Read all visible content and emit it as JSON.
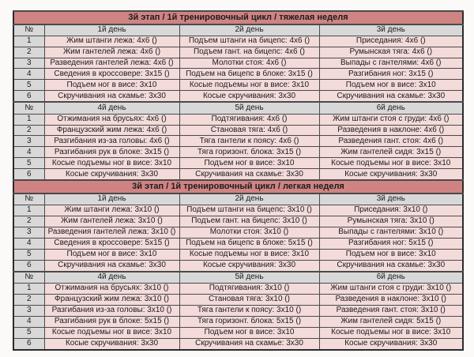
{
  "colors": {
    "title_bg": "#D08383",
    "header_bg": "#D8D8D8",
    "cell_bg": "#F3DBDA",
    "border": "#4a4a4a",
    "border_outer": "#2b2b2b",
    "text": "#1c1c1c",
    "page_bg": "#FBFAF9"
  },
  "table": {
    "sections": [
      {
        "title": "3й этап / 1й тренировочный цикл / тяжелая неделя",
        "blocks": [
          {
            "headers": [
              "№",
              "1й день",
              "2й день",
              "3й день"
            ],
            "rows": [
              [
                "1",
                "Жим штанги лежа: 4х6 ()",
                "Подъем штанги на бицепс: 4х6 ()",
                "Приседания: 4х6 ()"
              ],
              [
                "2",
                "Жим гантелей лежа: 4х6 ()",
                "Подъем гант. на бицепс: 4х6 ()",
                "Румынская тяга: 4х6 ()"
              ],
              [
                "3",
                "Разведения гантелей лежа: 4х6 ()",
                "Молотки стоя: 4х6 ()",
                "Выпады с гантелями: 4х6 ()"
              ],
              [
                "4",
                "Сведения в кроссовере: 3х15 ()",
                "Подъем на бицепс в блоке: 3х15 ()",
                "Разгибания ног: 3х15 ()"
              ],
              [
                "5",
                "Подъем ног в висе: 3х10",
                "Косые подъемы ног в висе: 3х10",
                "Подъем ног в висе: 3х10"
              ],
              [
                "6",
                "Скручивания на скамье: 3х30",
                "Косые скручивания: 3х30",
                "Скручивания на скамье: 3х30"
              ]
            ]
          },
          {
            "headers": [
              "№",
              "4й день",
              "5й день",
              "6й день"
            ],
            "rows": [
              [
                "1",
                "Отжимания на брусьях: 4х6 ()",
                "Подтягивания: 4х6 ()",
                "Жим штанги стоя с груди: 4х6 ()"
              ],
              [
                "2",
                "Французский жим лежа: 4х6 ()",
                "Становая тяга: 4х6 ()",
                "Разведения в наклоне: 4х6 ()"
              ],
              [
                "3",
                "Разгибания из-за головы: 4х6 ()",
                "Тяга гантели к поясу: 4х6 ()",
                "Разведения гант. стоя: 4х6 ()"
              ],
              [
                "4",
                "Разгибания рук в блоке: 3х15 ()",
                "Тяга горизонт. блока: 3х15 ()",
                "Жим гантелей сидя: 3х15 ()"
              ],
              [
                "5",
                "Косые подъемы ног в висе: 3х10",
                "Подъем ног в висе: 3х10",
                "Косые подъемы ног в висе: 3х10"
              ],
              [
                "6",
                "Косые скручивания: 3х30",
                "Скручивания на скамье: 3х30",
                "Косые скручивания: 3х30"
              ]
            ]
          }
        ]
      },
      {
        "title": "3й этап / 1й тренировочный цикл / легкая неделя",
        "blocks": [
          {
            "headers": [
              "№",
              "1й день",
              "2й день",
              "3й день"
            ],
            "rows": [
              [
                "1",
                "Жим штанги лежа: 3х10 ()",
                "Подъем штанги на бицепс: 3х10 ()",
                "Приседания: 3х10 ()"
              ],
              [
                "2",
                "Жим гантелей лежа: 3х10 ()",
                "Подъем гант. на бицепс: 3х10 ()",
                "Румынская тяга: 3х10 ()"
              ],
              [
                "3",
                "Разведения гантелей лежа: 3х10 ()",
                "Молотки стоя: 3х10 ()",
                "Выпады с гантелями: 3х10 ()"
              ],
              [
                "4",
                "Сведения в кроссовере: 5х15 ()",
                "Подъем на бицепс в блоке: 5х15 ()",
                "Разгибания ног: 5х15 ()"
              ],
              [
                "5",
                "Подъем ног в висе: 3х10",
                "Косые подъемы ног в висе: 3х10",
                "Подъем ног в висе: 3х10"
              ],
              [
                "6",
                "Скручивания на скамье: 3х30",
                "Косые скручивания: 3х30",
                "Скручивания на скамье: 3х30"
              ]
            ]
          },
          {
            "headers": [
              "№",
              "4й день",
              "5й день",
              "6й день"
            ],
            "rows": [
              [
                "1",
                "Отжимания на брусьях: 3х10 ()",
                "Подтягивания: 3х10 ()",
                "Жим штанги стоя с груди: 3х10 ()"
              ],
              [
                "2",
                "Французский жим лежа: 3х10 ()",
                "Становая тяга: 3х10 ()",
                "Разведения в наклоне: 3х10 ()"
              ],
              [
                "3",
                "Разгибания из-за головы: 3х10 ()",
                "Тяга гантели к поясу: 3х10 ()",
                "Разведения гант. стоя: 3х10 ()"
              ],
              [
                "4",
                "Разгибания рук в блоке: 5х15 ()",
                "Тяга горизонт. блока: 5х15 ()",
                "Жим гантелей сидя: 5х15 ()"
              ],
              [
                "5",
                "Косые подъемы ног в висе: 3х10",
                "Подъем ног в висе: 3х10",
                "Косые подъемы ног в висе: 3х10"
              ],
              [
                "6",
                "Косые скручивания: 3х30",
                "Скручивания на скамье: 3х30",
                "Косые скручивания: 3х30"
              ]
            ]
          }
        ]
      }
    ]
  }
}
